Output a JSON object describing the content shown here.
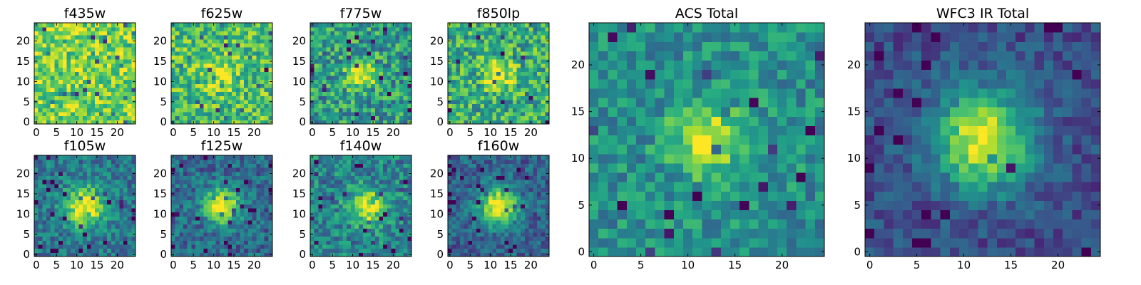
{
  "chart_data": [
    {
      "type": "heatmap",
      "title": "f435w",
      "colormap": "viridis",
      "grid_size": 25,
      "center": [
        13,
        12
      ],
      "sigma": 3.0,
      "peak": 0.05,
      "base": 0.8,
      "noise": 0.22,
      "seed": 11,
      "x_ticks": [
        "0",
        "5",
        "10",
        "15",
        "20"
      ],
      "y_ticks": [
        "0",
        "5",
        "10",
        "15",
        "20"
      ],
      "xlim": [
        0,
        24
      ],
      "ylim": [
        0,
        24
      ]
    },
    {
      "type": "heatmap",
      "title": "f625w",
      "colormap": "viridis",
      "grid_size": 25,
      "center": [
        12,
        12
      ],
      "sigma": 2.8,
      "peak": 0.25,
      "base": 0.7,
      "noise": 0.24,
      "seed": 23,
      "x_ticks": [
        "0",
        "5",
        "10",
        "15",
        "20"
      ],
      "y_ticks": [
        "0",
        "5",
        "10",
        "15",
        "20"
      ],
      "xlim": [
        0,
        24
      ],
      "ylim": [
        0,
        24
      ]
    },
    {
      "type": "heatmap",
      "title": "f775w",
      "colormap": "viridis",
      "grid_size": 25,
      "center": [
        12,
        12
      ],
      "sigma": 2.4,
      "peak": 0.5,
      "base": 0.55,
      "noise": 0.26,
      "seed": 37,
      "x_ticks": [
        "0",
        "5",
        "10",
        "15",
        "20"
      ],
      "y_ticks": [
        "0",
        "5",
        "10",
        "15",
        "20"
      ],
      "xlim": [
        0,
        24
      ],
      "ylim": [
        0,
        24
      ]
    },
    {
      "type": "heatmap",
      "title": "f850lp",
      "colormap": "viridis",
      "grid_size": 25,
      "center": [
        12,
        12
      ],
      "sigma": 2.5,
      "peak": 0.4,
      "base": 0.62,
      "noise": 0.26,
      "seed": 41,
      "x_ticks": [
        "0",
        "5",
        "10",
        "15",
        "20"
      ],
      "y_ticks": [
        "0",
        "5",
        "10",
        "15",
        "20"
      ],
      "xlim": [
        0,
        24
      ],
      "ylim": [
        0,
        24
      ]
    },
    {
      "type": "heatmap",
      "title": "f105w",
      "colormap": "viridis",
      "grid_size": 25,
      "center": [
        12,
        12
      ],
      "sigma": 3.4,
      "peak": 0.65,
      "base": 0.4,
      "noise": 0.18,
      "seed": 53,
      "x_ticks": [
        "0",
        "5",
        "10",
        "15",
        "20"
      ],
      "y_ticks": [
        "0",
        "5",
        "10",
        "15",
        "20"
      ],
      "xlim": [
        0,
        24
      ],
      "ylim": [
        0,
        24
      ]
    },
    {
      "type": "heatmap",
      "title": "f125w",
      "colormap": "viridis",
      "grid_size": 25,
      "center": [
        12,
        12
      ],
      "sigma": 3.0,
      "peak": 0.72,
      "base": 0.35,
      "noise": 0.17,
      "seed": 67,
      "x_ticks": [
        "0",
        "5",
        "10",
        "15",
        "20"
      ],
      "y_ticks": [
        "0",
        "5",
        "10",
        "15",
        "20"
      ],
      "xlim": [
        0,
        24
      ],
      "ylim": [
        0,
        24
      ]
    },
    {
      "type": "heatmap",
      "title": "f140w",
      "colormap": "viridis",
      "grid_size": 25,
      "center": [
        13,
        12
      ],
      "sigma": 3.0,
      "peak": 0.55,
      "base": 0.45,
      "noise": 0.22,
      "seed": 71,
      "x_ticks": [
        "0",
        "5",
        "10",
        "15",
        "20"
      ],
      "y_ticks": [
        "0",
        "5",
        "10",
        "15",
        "20"
      ],
      "xlim": [
        0,
        24
      ],
      "ylim": [
        0,
        24
      ]
    },
    {
      "type": "heatmap",
      "title": "f160w",
      "colormap": "viridis",
      "grid_size": 25,
      "center": [
        12,
        12
      ],
      "sigma": 3.2,
      "peak": 0.72,
      "base": 0.32,
      "noise": 0.16,
      "seed": 83,
      "x_ticks": [
        "0",
        "5",
        "10",
        "15",
        "20"
      ],
      "y_ticks": [
        "0",
        "5",
        "10",
        "15",
        "20"
      ],
      "xlim": [
        0,
        24
      ],
      "ylim": [
        0,
        24
      ]
    },
    {
      "type": "heatmap",
      "title": "ACS Total",
      "colormap": "viridis",
      "grid_size": 25,
      "center": [
        12,
        12
      ],
      "sigma": 2.6,
      "peak": 0.5,
      "base": 0.5,
      "noise": 0.18,
      "seed": 97,
      "x_ticks": [
        "0",
        "5",
        "10",
        "15",
        "20"
      ],
      "y_ticks": [
        "0",
        "5",
        "10",
        "15",
        "20"
      ],
      "xlim": [
        0,
        24
      ],
      "ylim": [
        0,
        24
      ]
    },
    {
      "type": "heatmap",
      "title": "WFC3 IR Total",
      "colormap": "viridis",
      "grid_size": 25,
      "center": [
        12,
        12
      ],
      "sigma": 3.6,
      "peak": 0.72,
      "base": 0.25,
      "noise": 0.12,
      "seed": 109,
      "x_ticks": [
        "0",
        "5",
        "10",
        "15",
        "20"
      ],
      "y_ticks": [
        "0",
        "5",
        "10",
        "15",
        "20"
      ],
      "xlim": [
        0,
        24
      ],
      "ylim": [
        0,
        24
      ]
    }
  ]
}
